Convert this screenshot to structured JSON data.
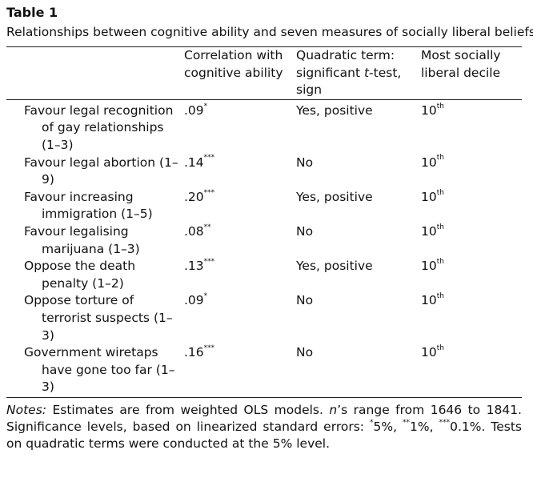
{
  "table": {
    "label": "Table 1",
    "caption": "Relationships between cognitive ability and seven measures of socially liberal beliefs.",
    "headers": {
      "measure": "",
      "correlation": "Correlation with cognitive ability",
      "quadratic_prefix": "Quadratic term: significant ",
      "quadratic_italic": "t",
      "quadratic_suffix": "-test, sign",
      "decile": "Most socially liberal decile"
    },
    "rows": [
      {
        "measure": "Favour legal recognition of gay relationships (1–3)",
        "correlation": ".09",
        "sig": "*",
        "quadratic": "Yes, positive",
        "decile": "10",
        "decile_sup": "th"
      },
      {
        "measure": "Favour legal abortion (1–9)",
        "correlation": ".14",
        "sig": "***",
        "quadratic": "No",
        "decile": "10",
        "decile_sup": "th"
      },
      {
        "measure": "Favour increasing immigration (1–5)",
        "correlation": ".20",
        "sig": "***",
        "quadratic": "Yes, positive",
        "decile": "10",
        "decile_sup": "th"
      },
      {
        "measure": "Favour legalising marijuana (1–3)",
        "correlation": ".08",
        "sig": "**",
        "quadratic": "No",
        "decile": "10",
        "decile_sup": "th"
      },
      {
        "measure": "Oppose the death penalty (1–2)",
        "correlation": ".13",
        "sig": "***",
        "quadratic": "Yes, positive",
        "decile": "10",
        "decile_sup": "th"
      },
      {
        "measure": "Oppose torture of terrorist suspects (1–3)",
        "correlation": ".09",
        "sig": "*",
        "quadratic": "No",
        "decile": "10",
        "decile_sup": "th"
      },
      {
        "measure": "Government wiretaps have gone too far (1–3)",
        "correlation": ".16",
        "sig": "***",
        "quadratic": "No",
        "decile": "10",
        "decile_sup": "th"
      }
    ]
  },
  "notes": {
    "label": "Notes:",
    "text1": " Estimates are from weighted OLS models. ",
    "n_italic": "n",
    "text2": "’s range from 1646 to 1841. Significance levels, based on linearized standard errors: ",
    "sig1": "*",
    "sig1_text": "5%, ",
    "sig2": "**",
    "sig2_text": "1%, ",
    "sig3": "***",
    "sig3_text": "0.1%. Tests on quadratic terms were conducted at the 5% level."
  }
}
